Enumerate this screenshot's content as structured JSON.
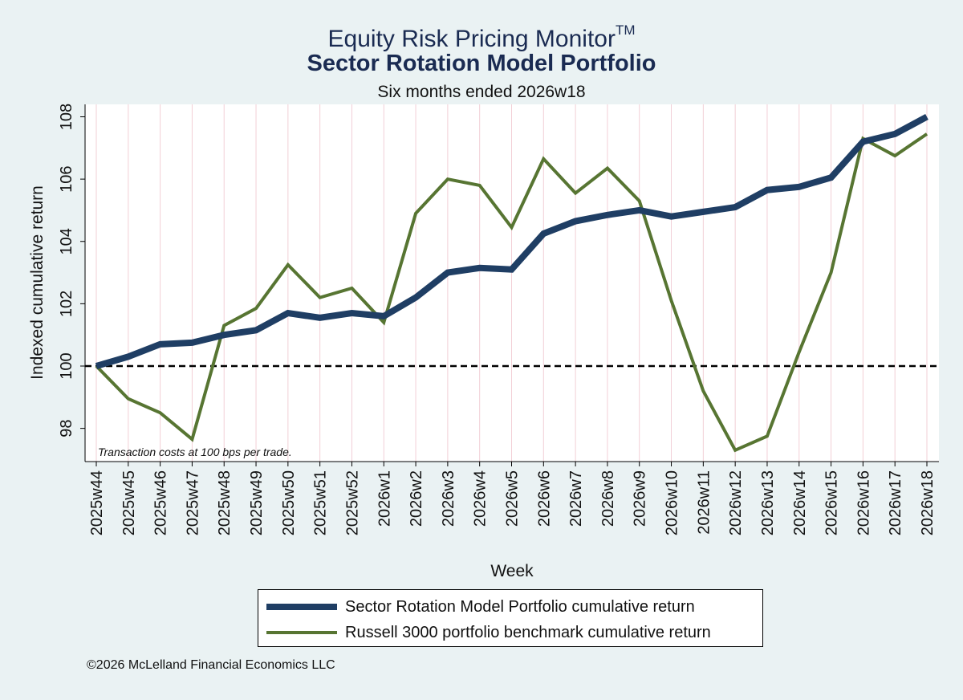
{
  "header": {
    "title_line1": "Equity Risk Pricing Monitor",
    "title_tm": "TM",
    "title_line2": "Sector Rotation Model Portfolio",
    "subtitle": "Six months ended 2026w18"
  },
  "chart_data": {
    "type": "line",
    "xlabel": "Week",
    "ylabel": "Indexed cumulative return",
    "ylim": [
      97,
      108.4
    ],
    "yticks": [
      98,
      100,
      102,
      104,
      106,
      108
    ],
    "reference_line": 100,
    "grid": "vertical",
    "annotation": "Transaction costs at 100 bps per trade.",
    "x": [
      "2025w44",
      "2025w45",
      "2025w46",
      "2025w47",
      "2025w48",
      "2025w49",
      "2025w50",
      "2025w51",
      "2025w52",
      "2026w1",
      "2026w2",
      "2026w3",
      "2026w4",
      "2026w5",
      "2026w6",
      "2026w7",
      "2026w8",
      "2026w9",
      "2026w10",
      "2026w11",
      "2026w12",
      "2026w13",
      "2026w14",
      "2026w15",
      "2026w16",
      "2026w17",
      "2026w18"
    ],
    "series": [
      {
        "name": "Sector Rotation Model Portfolio cumulative return",
        "color": "#1f3e64",
        "values": [
          100.0,
          100.3,
          100.7,
          100.75,
          101.0,
          101.15,
          101.7,
          101.55,
          101.7,
          101.6,
          102.2,
          103.0,
          103.15,
          103.1,
          104.25,
          104.65,
          104.85,
          105.0,
          104.8,
          104.95,
          105.1,
          105.65,
          105.75,
          106.05,
          107.2,
          107.45,
          108.0
        ]
      },
      {
        "name": "Russell 3000 portfolio benchmark cumulative return",
        "color": "#577532",
        "values": [
          100.0,
          98.95,
          98.5,
          97.65,
          101.3,
          101.85,
          103.25,
          102.2,
          102.5,
          101.4,
          104.9,
          106.0,
          105.8,
          104.45,
          106.65,
          105.55,
          106.35,
          105.3,
          102.1,
          99.2,
          97.3,
          97.75,
          100.45,
          103.0,
          107.3,
          106.75,
          107.45
        ]
      }
    ]
  },
  "footer": {
    "copyright": "©2026 McLelland Financial Economics LLC"
  }
}
